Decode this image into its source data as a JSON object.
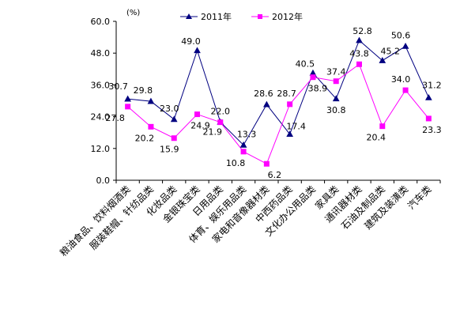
{
  "chart_data": {
    "type": "line",
    "unit_label": "(%)",
    "categories": [
      "粮油食品、饮料烟酒类",
      "服装鞋帽、针纺品类",
      "化妆品类",
      "金银珠宝类",
      "日用品类",
      "体育、娱乐用品类",
      "家电和音像器材类",
      "中西药品类",
      "文化办公用品类",
      "家具类",
      "通讯器材类",
      "石油及制品类",
      "建筑及装潢类",
      "汽车类"
    ],
    "series": [
      {
        "name": "2011年",
        "color": "#000080",
        "marker": "triangle",
        "values": [
          30.7,
          29.8,
          23.0,
          49.0,
          22.0,
          13.3,
          28.6,
          17.4,
          40.5,
          30.8,
          52.8,
          45.2,
          50.6,
          31.2
        ],
        "labels": [
          "30.7",
          "29.8",
          "23.0",
          "49.0",
          "22.0",
          "13.3",
          "28.6",
          "17.4",
          "40.5",
          "30.8",
          "52.8",
          "45.2",
          "50.6",
          "31.2"
        ]
      },
      {
        "name": "2012年",
        "color": "#ff00ff",
        "marker": "square",
        "values": [
          27.8,
          20.2,
          15.9,
          24.9,
          21.9,
          10.8,
          6.2,
          28.7,
          38.9,
          37.4,
          43.8,
          20.4,
          34.0,
          23.3
        ],
        "labels": [
          "27.8",
          "20.2",
          "15.9",
          "24.9",
          "21.9",
          "10.8",
          "6.2",
          "28.7",
          "38.9",
          "37.4",
          "43.8",
          "20.4",
          "34.0",
          "23.3"
        ]
      }
    ],
    "y_ticks": [
      "0.0",
      "12.0",
      "24.0",
      "36.0",
      "48.0",
      "60.0"
    ],
    "ylim": [
      0,
      60
    ],
    "grid": false,
    "legend_position": "top"
  }
}
